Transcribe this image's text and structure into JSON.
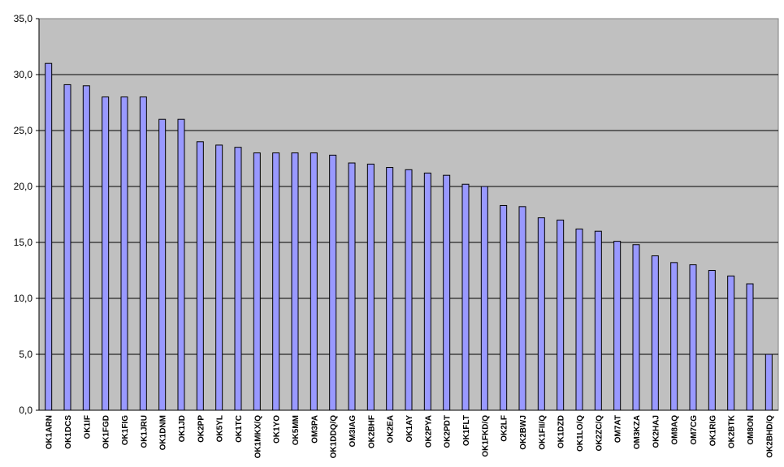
{
  "chart_data": {
    "type": "bar",
    "title": "",
    "xlabel": "",
    "ylabel": "",
    "ylim": [
      0,
      35
    ],
    "yticks": [
      "0,0",
      "5,0",
      "10,0",
      "15,0",
      "20,0",
      "25,0",
      "30,0",
      "35,0"
    ],
    "grid": true,
    "legend": "none",
    "colors": {
      "plot_background": "#c0c0c0",
      "bar_fill": "#9999ff",
      "bar_stroke": "#000000",
      "gridline": "#000000"
    },
    "categories": [
      "OK1ARN",
      "OK1DCS",
      "OK1IF",
      "OK1FGD",
      "OK1FIG",
      "OK1JRU",
      "OK1DNM",
      "OK1JD",
      "OK2PP",
      "OK5YL",
      "OK1TC",
      "OK1MKX/Q",
      "OK1YO",
      "OK5MM",
      "OM3PA",
      "OK1DDQ/Q",
      "OM3IAG",
      "OK2BHF",
      "OK2EA",
      "OK1AY",
      "OK2PYA",
      "OK2PDT",
      "OK1FLT",
      "OK1FKD/Q",
      "OK2LF",
      "OK2BWJ",
      "OK1FII/Q",
      "OK1DZD",
      "OK1LO/Q",
      "OK2ZC/Q",
      "OM7AT",
      "OM3KZA",
      "OK2HAJ",
      "OM8AQ",
      "OM7CG",
      "OK1RIG",
      "OK2BTK",
      "OM8ON",
      "OK2BHD/Q"
    ],
    "values": [
      31.0,
      29.1,
      29.0,
      28.0,
      28.0,
      28.0,
      26.0,
      26.0,
      24.0,
      23.7,
      23.5,
      23.0,
      23.0,
      23.0,
      23.0,
      22.8,
      22.1,
      22.0,
      21.7,
      21.5,
      21.2,
      21.0,
      20.2,
      20.0,
      18.3,
      18.2,
      17.2,
      17.0,
      16.2,
      16.0,
      15.1,
      14.8,
      13.8,
      13.2,
      13.0,
      12.5,
      12.0,
      11.3,
      5.0
    ]
  }
}
